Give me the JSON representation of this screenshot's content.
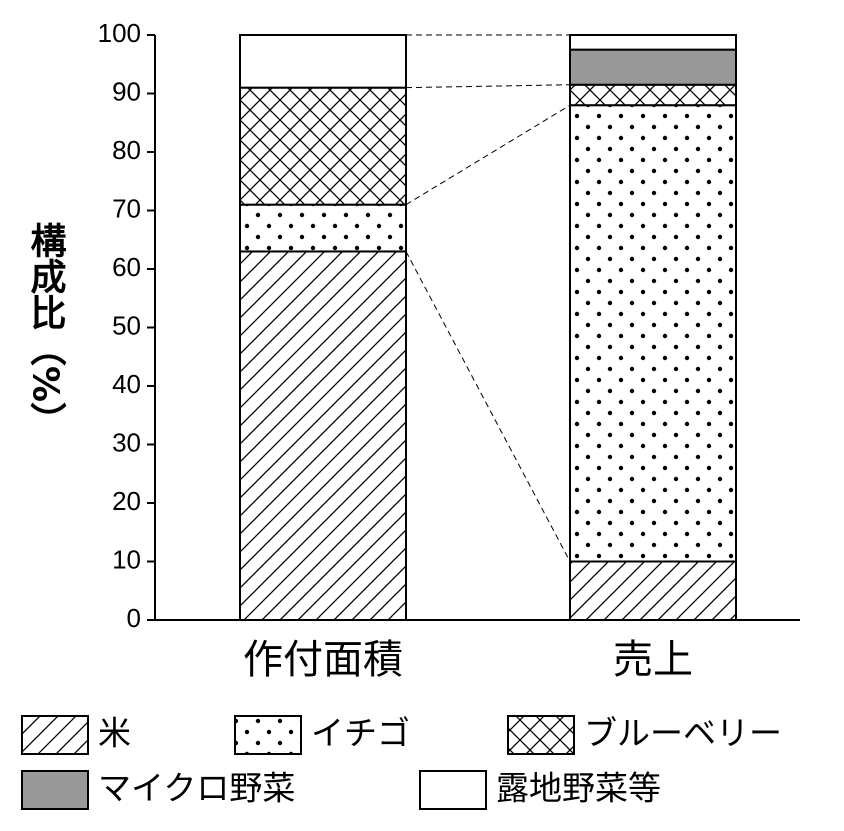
{
  "chart_data": {
    "type": "stacked-bar",
    "y_label": "構成比（%）",
    "categories": [
      "作付面積",
      "売上"
    ],
    "series": [
      {
        "name": "米",
        "color": "#ffffff",
        "pattern": "diagonal",
        "values": [
          63,
          10
        ]
      },
      {
        "name": "イチゴ",
        "color": "#ffffff",
        "pattern": "dots",
        "values": [
          8,
          78
        ]
      },
      {
        "name": "ブルーベリー",
        "color": "#ffffff",
        "pattern": "crosshatch",
        "values": [
          20,
          3.5
        ]
      },
      {
        "name": "マイクロ野菜",
        "color": "#999999",
        "pattern": "solid",
        "values": [
          0,
          6
        ]
      },
      {
        "name": "露地野菜等",
        "color": "#ffffff",
        "pattern": "solid",
        "values": [
          9,
          2.5
        ]
      }
    ],
    "ylim": [
      0,
      100
    ],
    "yticks": [
      0,
      10,
      20,
      30,
      40,
      50,
      60,
      70,
      80,
      90,
      100
    ],
    "connectors": true
  }
}
